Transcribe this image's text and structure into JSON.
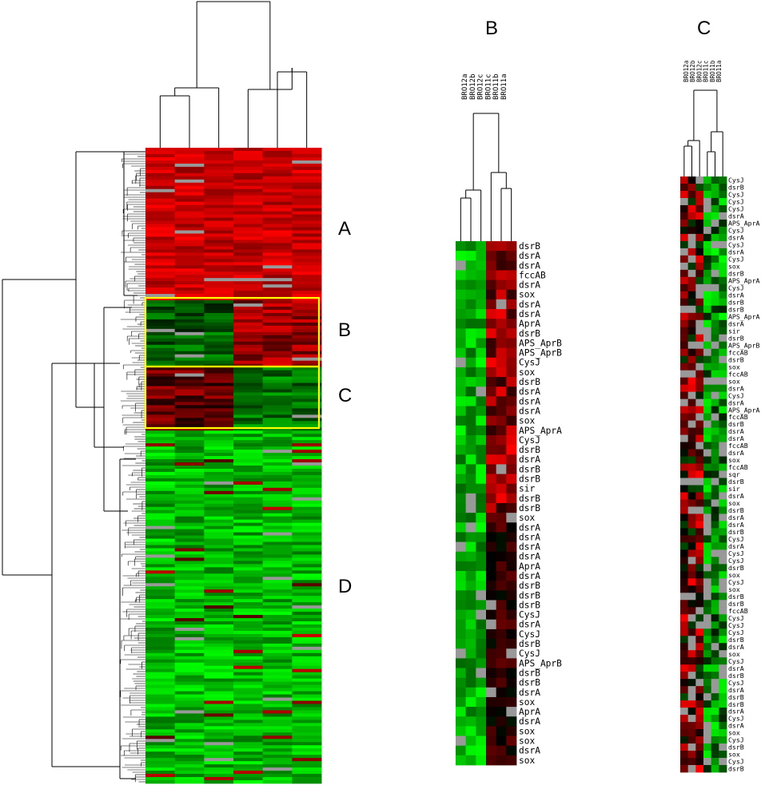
{
  "colors": {
    "up": "#ff0000",
    "mid": "#000000",
    "down": "#00ff00",
    "missing": "#999999",
    "highlight_box": "#ffff00",
    "tree": "#000000"
  },
  "panel_a": {
    "cluster_labels": [
      "A",
      "B",
      "C",
      "D"
    ],
    "columns": 6
  },
  "panel_b": {
    "title": "B",
    "samples": [
      "BRO12a",
      "BRO12b",
      "BRO12c",
      "BRO11c",
      "BRO11b",
      "BRO11a"
    ],
    "genes": [
      "dsrB",
      "dsrA",
      "dsrA",
      "fccAB",
      "dsrA",
      "sox",
      "dsrA",
      "dsrA",
      "AprA",
      "dsrB",
      "APS_AprB",
      "APS_AprB",
      "CysJ",
      "sox",
      "dsrB",
      "dsrA",
      "dsrA",
      "dsrA",
      "sox",
      "APS_AprA",
      "CysJ",
      "dsrB",
      "dsrA",
      "dsrB",
      "dsrB",
      "sir",
      "dsrB",
      "dsrB",
      "sox",
      "dsrA",
      "dsrA",
      "dsrA",
      "dsrA",
      "AprA",
      "dsrA",
      "dsrB",
      "dsrB",
      "dsrB",
      "CysJ",
      "dsrA",
      "CysJ",
      "dsrB",
      "CysJ",
      "APS_AprB",
      "dsrB",
      "dsrB",
      "dsrA",
      "sox",
      "AprA",
      "dsrA",
      "sox",
      "sox",
      "dsrA",
      "sox"
    ]
  },
  "panel_c": {
    "title": "C",
    "samples": [
      "BRO12a",
      "BRO12b",
      "BRO12c",
      "BRO11c",
      "BRO11b",
      "BRO11a"
    ],
    "genes": [
      "CysJ",
      "dsrB",
      "CysJ",
      "CysJ",
      "CysJ",
      "dsrA",
      "APS_AprA",
      "CysJ",
      "dsrA",
      "CysJ",
      "dsrA",
      "CysJ",
      "sox",
      "dsrB",
      "APS_AprA",
      "CysJ",
      "dsrA",
      "dsrB",
      "dsrB",
      "APS_AprA",
      "dsrA",
      "sir",
      "dsrB",
      "APS_AprB",
      "fccAB",
      "dsrB",
      "sox",
      "fccAB",
      "sox",
      "dsrA",
      "CysJ",
      "dsrA",
      "APS_AprA",
      "fccAB",
      "dsrB",
      "dsrA",
      "dsrA",
      "fccAB",
      "dsrA",
      "sox",
      "fccAB",
      "sqr",
      "dsrB",
      "sir",
      "dsrA",
      "sox",
      "dsrB",
      "dsrA",
      "dsrA",
      "dsrB",
      "CysJ",
      "dsrA",
      "CysJ",
      "CysJ",
      "dsrB",
      "sox",
      "CysJ",
      "sox",
      "dsrB",
      "dsrB",
      "fccAB",
      "CysJ",
      "CysJ",
      "CysJ",
      "dsrB",
      "dsrA",
      "sox",
      "CysJ",
      "dsrA",
      "dsrB",
      "CysJ",
      "dsrA",
      "dsrB",
      "dsrB",
      "dsrA",
      "CysJ",
      "dsrA",
      "sox",
      "CysJ",
      "dsrB",
      "sox",
      "CysJ",
      "dsrB"
    ]
  }
}
